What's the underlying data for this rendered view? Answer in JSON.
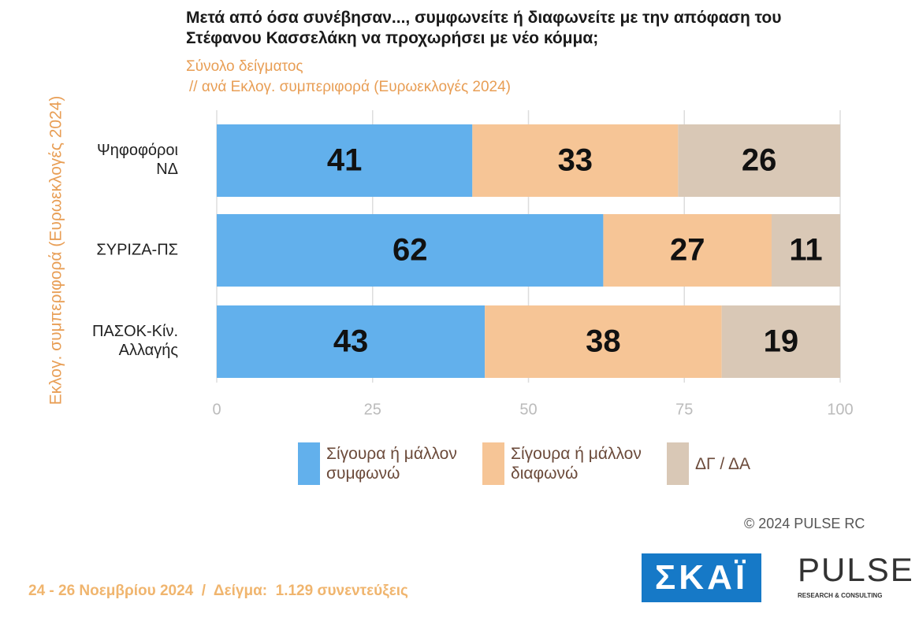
{
  "chart_data": {
    "type": "stacked-barh",
    "title": "Μετά από όσα συνέβησαν..., συμφωνείτε ή διαφωνείτε με την απόφαση του Στέφανου Κασσελάκη να προχωρήσει με νέο κόμμα;",
    "subtitle": "Σύνολο δείγματος",
    "subtitle2": "// ανά Εκλογ. συμπεριφορά (Ευρωεκλογές 2024)",
    "y_label": "Εκλογ. συμπεριφορά (Ευρωεκλογές 2024)",
    "categories": [
      "Ψηφοφόροι ΝΔ",
      "ΣΥΡΙΖΑ-ΠΣ",
      "ΠΑΣΟΚ-Κίν. Αλλαγής"
    ],
    "series": [
      {
        "name": "Σίγουρα ή μάλλον συμφωνώ",
        "color": "#62b0ec",
        "values": [
          41,
          62,
          43
        ]
      },
      {
        "name": "Σίγουρα ή μάλλον διαφωνώ",
        "color": "#f6c596",
        "values": [
          33,
          27,
          38
        ]
      },
      {
        "name": "ΔΓ / ΔΑ",
        "color": "#d9c8b6",
        "values": [
          26,
          11,
          19
        ]
      }
    ],
    "xlim": [
      0,
      100
    ],
    "xticks": [
      0,
      25,
      50,
      75,
      100
    ],
    "grid": true,
    "copyright": "© 2024 PULSE RC",
    "footer": "24 - 26 Νοεμβρίου 2024  /  Δείγμα:  1.129 συνεντεύξεις",
    "logos": [
      "ΣΚΑΪ",
      "PULSE",
      "RESEARCH & CONSULTING"
    ]
  }
}
